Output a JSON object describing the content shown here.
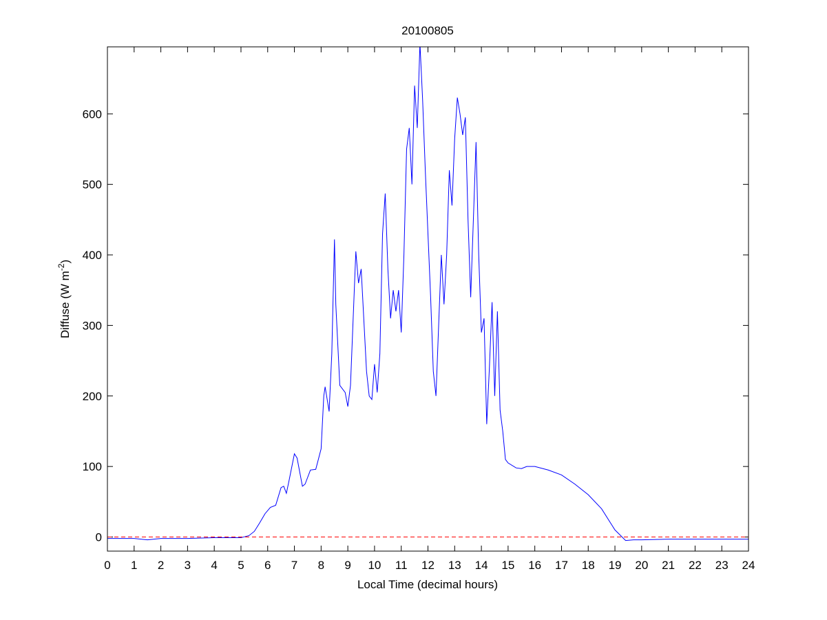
{
  "chart_data": {
    "type": "line",
    "title": "20100805",
    "xlabel": "Local Time (decimal hours)",
    "ylabel": {
      "text": "Diffuse (W m",
      "superscript": "-2",
      "suffix": ")"
    },
    "xlim": [
      0,
      24
    ],
    "ylim": [
      -20,
      695
    ],
    "xticks": [
      0,
      1,
      2,
      3,
      4,
      5,
      6,
      7,
      8,
      9,
      10,
      11,
      12,
      13,
      14,
      15,
      16,
      17,
      18,
      19,
      20,
      21,
      22,
      23,
      24
    ],
    "yticks": [
      0,
      100,
      200,
      300,
      400,
      500,
      600
    ],
    "reference_line": {
      "value": 0,
      "color": "#ff0000",
      "dashed": true
    },
    "series": [
      {
        "color": "#0000ff",
        "x": [
          0,
          1,
          1.5,
          2,
          3,
          4,
          5,
          5.3,
          5.5,
          5.7,
          5.9,
          6.1,
          6.3,
          6.5,
          6.6,
          6.7,
          6.8,
          7.0,
          7.1,
          7.3,
          7.4,
          7.6,
          7.8,
          8.0,
          8.1,
          8.15,
          8.3,
          8.4,
          8.5,
          8.55,
          8.7,
          8.9,
          9.0,
          9.1,
          9.3,
          9.4,
          9.5,
          9.7,
          9.8,
          9.9,
          10.0,
          10.1,
          10.2,
          10.3,
          10.4,
          10.5,
          10.6,
          10.7,
          10.8,
          10.9,
          11.0,
          11.1,
          11.2,
          11.3,
          11.4,
          11.5,
          11.6,
          11.7,
          11.8,
          11.9,
          12.0,
          12.1,
          12.2,
          12.3,
          12.4,
          12.5,
          12.6,
          12.7,
          12.8,
          12.9,
          13.0,
          13.1,
          13.2,
          13.3,
          13.4,
          13.5,
          13.6,
          13.7,
          13.8,
          13.9,
          14.0,
          14.1,
          14.2,
          14.3,
          14.4,
          14.5,
          14.6,
          14.7,
          14.8,
          14.9,
          15.0,
          15.3,
          15.5,
          15.7,
          16.0,
          16.5,
          17.0,
          17.5,
          18.0,
          18.5,
          19.0,
          19.4,
          19.7,
          20,
          21,
          22,
          23,
          24
        ],
        "values": [
          -2,
          -2,
          -4,
          -2,
          -2,
          -1,
          -1,
          2,
          8,
          20,
          33,
          42,
          45,
          70,
          72,
          62,
          80,
          118,
          112,
          72,
          75,
          95,
          96,
          125,
          200,
          213,
          178,
          260,
          422,
          330,
          215,
          205,
          185,
          215,
          405,
          360,
          380,
          235,
          200,
          195,
          245,
          205,
          260,
          430,
          487,
          380,
          310,
          350,
          320,
          350,
          290,
          400,
          550,
          580,
          500,
          640,
          580,
          700,
          620,
          520,
          430,
          340,
          235,
          200,
          300,
          400,
          330,
          400,
          520,
          470,
          565,
          623,
          600,
          570,
          595,
          450,
          340,
          450,
          560,
          400,
          290,
          310,
          160,
          240,
          333,
          200,
          320,
          180,
          150,
          110,
          105,
          98,
          97,
          100,
          100,
          95,
          88,
          75,
          60,
          40,
          10,
          -5,
          -4,
          -4,
          -3,
          -3,
          -3,
          -3
        ]
      }
    ]
  }
}
